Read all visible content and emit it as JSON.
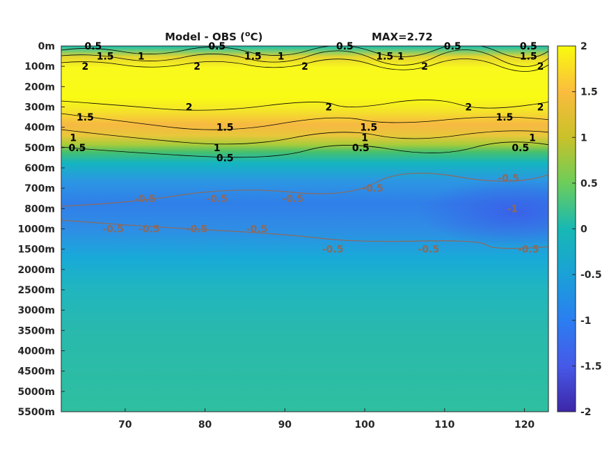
{
  "chart_data": {
    "type": "heatmap",
    "title": "Model - OBS (",
    "title_sup": "o",
    "title_end": "C)",
    "annotation": "MAX=2.72",
    "xlabel": "",
    "ylabel": "",
    "xlim": [
      62,
      123
    ],
    "x_ticks": [
      70,
      80,
      90,
      100,
      110,
      120
    ],
    "x_tick_labels": [
      "70",
      "80",
      "90",
      "100",
      "110",
      "120"
    ],
    "depth_tick_labels": [
      "0m",
      "100m",
      "200m",
      "300m",
      "400m",
      "500m",
      "600m",
      "700m",
      "800m",
      "1000m",
      "1500m",
      "2000m",
      "2500m",
      "3000m",
      "3500m",
      "4000m",
      "4500m",
      "5000m",
      "5500m"
    ],
    "colorbar": {
      "range": [
        -2,
        2
      ],
      "tick_values": [
        2,
        1.5,
        1,
        0.5,
        0,
        -0.5,
        -1,
        -1.5,
        -2
      ],
      "tick_labels": [
        "2",
        "1.5",
        "1",
        "0.5",
        "0",
        "-0.5",
        "-1",
        "-1.5",
        "-2"
      ]
    },
    "field_profile": [
      {
        "depth": "0m",
        "value": 0.3
      },
      {
        "depth": "100m",
        "value": 2.2
      },
      {
        "depth": "200m",
        "value": 2.4
      },
      {
        "depth": "300m",
        "value": 2.0
      },
      {
        "depth": "400m",
        "value": 1.2
      },
      {
        "depth": "500m",
        "value": 0.4
      },
      {
        "depth": "600m",
        "value": -0.3
      },
      {
        "depth": "700m",
        "value": -0.6
      },
      {
        "depth": "800m",
        "value": -0.8
      },
      {
        "depth": "1000m",
        "value": -0.7
      },
      {
        "depth": "1500m",
        "value": -0.4
      },
      {
        "depth": "2000m",
        "value": -0.2
      },
      {
        "depth": "3000m",
        "value": 0.0
      },
      {
        "depth": "5500m",
        "value": 0.05
      }
    ],
    "contour_labels": [
      {
        "text": "0.5",
        "x": 66,
        "depth": "0m",
        "color": "#000000"
      },
      {
        "text": "1.5",
        "x": 67.5,
        "depth": "50m",
        "color": "#000000"
      },
      {
        "text": "1",
        "x": 72,
        "depth": "50m",
        "color": "#000000"
      },
      {
        "text": "2",
        "x": 65,
        "depth": "100m",
        "color": "#000000"
      },
      {
        "text": "0.5",
        "x": 81.5,
        "depth": "0m",
        "color": "#000000"
      },
      {
        "text": "2",
        "x": 79,
        "depth": "100m",
        "color": "#000000"
      },
      {
        "text": "1.5",
        "x": 86,
        "depth": "50m",
        "color": "#000000"
      },
      {
        "text": "1",
        "x": 89.5,
        "depth": "50m",
        "color": "#000000"
      },
      {
        "text": "2",
        "x": 92.5,
        "depth": "100m",
        "color": "#000000"
      },
      {
        "text": "0.5",
        "x": 97.5,
        "depth": "0m",
        "color": "#000000"
      },
      {
        "text": "1.5",
        "x": 102.5,
        "depth": "50m",
        "color": "#000000"
      },
      {
        "text": "1",
        "x": 104.5,
        "depth": "50m",
        "color": "#000000"
      },
      {
        "text": "2",
        "x": 107.5,
        "depth": "100m",
        "color": "#000000"
      },
      {
        "text": "0.5",
        "x": 111,
        "depth": "0m",
        "color": "#000000"
      },
      {
        "text": "0.5",
        "x": 120.5,
        "depth": "0m",
        "color": "#000000"
      },
      {
        "text": "1.5",
        "x": 120.5,
        "depth": "50m",
        "color": "#000000"
      },
      {
        "text": "2",
        "x": 122,
        "depth": "100m",
        "color": "#000000"
      },
      {
        "text": "2",
        "x": 78,
        "depth": "300m",
        "color": "#000000"
      },
      {
        "text": "2",
        "x": 95.5,
        "depth": "300m",
        "color": "#000000"
      },
      {
        "text": "2",
        "x": 113,
        "depth": "300m",
        "color": "#000000"
      },
      {
        "text": "2",
        "x": 122,
        "depth": "300m",
        "color": "#000000"
      },
      {
        "text": "1.5",
        "x": 65,
        "depth": "350m",
        "color": "#000000"
      },
      {
        "text": "1.5",
        "x": 82.5,
        "depth": "400m",
        "color": "#000000"
      },
      {
        "text": "1.5",
        "x": 100.5,
        "depth": "400m",
        "color": "#000000"
      },
      {
        "text": "1.5",
        "x": 117.5,
        "depth": "350m",
        "color": "#000000"
      },
      {
        "text": "1",
        "x": 63.5,
        "depth": "450m",
        "color": "#000000"
      },
      {
        "text": "1",
        "x": 81.5,
        "depth": "500m",
        "color": "#000000"
      },
      {
        "text": "1",
        "x": 100,
        "depth": "450m",
        "color": "#000000"
      },
      {
        "text": "1",
        "x": 121,
        "depth": "450m",
        "color": "#000000"
      },
      {
        "text": "0.5",
        "x": 64,
        "depth": "500m",
        "color": "#000000"
      },
      {
        "text": "0.5",
        "x": 82.5,
        "depth": "550m",
        "color": "#000000"
      },
      {
        "text": "0.5",
        "x": 99.5,
        "depth": "500m",
        "color": "#000000"
      },
      {
        "text": "0.5",
        "x": 119.5,
        "depth": "500m",
        "color": "#000000"
      },
      {
        "text": "-0.5",
        "x": 72.5,
        "depth": "750m",
        "color": "#8c6a5e"
      },
      {
        "text": "-0.5",
        "x": 81.5,
        "depth": "750m",
        "color": "#8c6a5e"
      },
      {
        "text": "-0.5",
        "x": 91,
        "depth": "750m",
        "color": "#8c6a5e"
      },
      {
        "text": "-0.5",
        "x": 101,
        "depth": "700m",
        "color": "#8c6a5e"
      },
      {
        "text": "-0.5",
        "x": 118,
        "depth": "650m",
        "color": "#8c6a5e"
      },
      {
        "text": "-0.5",
        "x": 68.5,
        "depth": "1000m",
        "color": "#8c6a5e"
      },
      {
        "text": "-0.5",
        "x": 73,
        "depth": "1000m",
        "color": "#8c6a5e"
      },
      {
        "text": "-0.5",
        "x": 79,
        "depth": "1000m",
        "color": "#8c6a5e"
      },
      {
        "text": "-0.5",
        "x": 86.5,
        "depth": "1000m",
        "color": "#8c6a5e"
      },
      {
        "text": "-0.5",
        "x": 96,
        "depth": "1500m",
        "color": "#8c6a5e"
      },
      {
        "text": "-0.5",
        "x": 108,
        "depth": "1500m",
        "color": "#8c6a5e"
      },
      {
        "text": "-0.5",
        "x": 120.5,
        "depth": "1500m",
        "color": "#8c6a5e"
      },
      {
        "text": "-1",
        "x": 118.5,
        "depth": "800m",
        "color": "#8c6a5e"
      }
    ],
    "grid": false,
    "colormap": "parula"
  }
}
